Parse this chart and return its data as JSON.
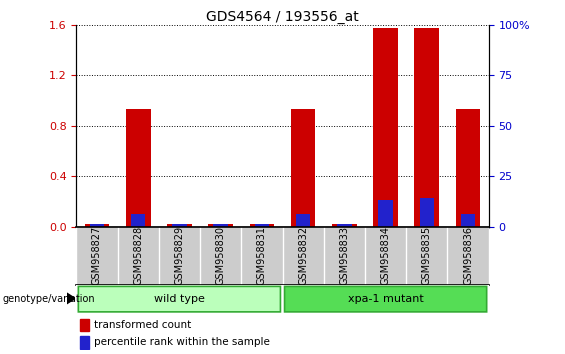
{
  "title": "GDS4564 / 193556_at",
  "samples": [
    "GSM958827",
    "GSM958828",
    "GSM958829",
    "GSM958830",
    "GSM958831",
    "GSM958832",
    "GSM958833",
    "GSM958834",
    "GSM958835",
    "GSM958836"
  ],
  "red_values": [
    0.022,
    0.93,
    0.018,
    0.018,
    0.018,
    0.93,
    0.018,
    1.575,
    1.575,
    0.93
  ],
  "blue_values_pct": [
    1.5,
    6.0,
    1.5,
    1.5,
    1.5,
    6.0,
    1.5,
    13.0,
    14.0,
    6.0
  ],
  "ylim": [
    0,
    1.6
  ],
  "right_ylim": [
    0,
    100
  ],
  "yticks_left": [
    0,
    0.4,
    0.8,
    1.2,
    1.6
  ],
  "yticks_right": [
    0,
    25,
    50,
    75,
    100
  ],
  "left_color": "#cc0000",
  "right_color": "#0000cc",
  "bar_width": 0.6,
  "blue_bar_width": 0.35,
  "wild_type_count": 5,
  "mutant_count": 5,
  "wild_type_label": "wild type",
  "mutant_label": "xpa-1 mutant",
  "genotype_label": "genotype/variation",
  "legend_red": "transformed count",
  "legend_blue": "percentile rank within the sample",
  "group_color_wt": "#bbffbb",
  "group_color_mut": "#55dd55",
  "group_border_color": "#33aa33",
  "sample_bg": "#cccccc",
  "background_plot": "#ffffff",
  "title_fontsize": 10,
  "tick_fontsize": 8,
  "sample_fontsize": 7,
  "label_fontsize": 8
}
